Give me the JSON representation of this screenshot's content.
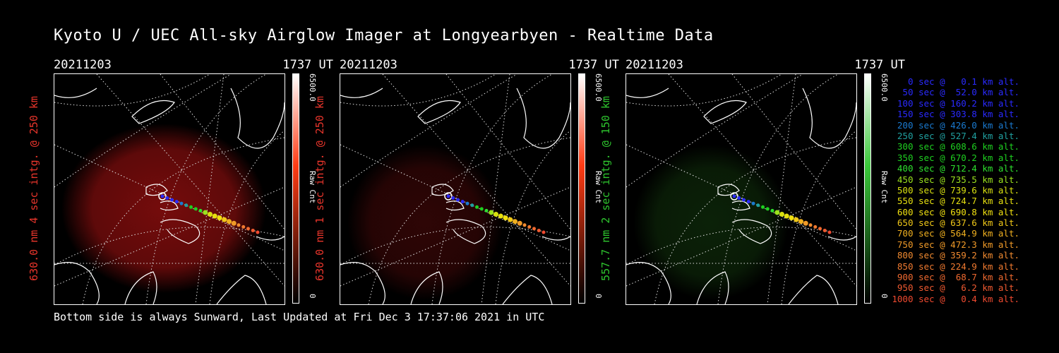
{
  "title": "Kyoto U / UEC All-sky Airglow Imager at Longyearbyen - Realtime Data",
  "footer": "Bottom side is always Sunward, Last Updated at Fri Dec  3 17:37:06 2021 in UTC",
  "panels": [
    {
      "date": "20211203",
      "time": "1737 UT",
      "side_label": "630.0 nm 4 sec intg. @ 250 km",
      "label_color": "#e8352b",
      "cbar_max": "6500.0",
      "cbar_label": "Raw Cnt",
      "cbar_min": "0",
      "cbar_color": "#ff3b14",
      "glow_color": "#8a0e0e",
      "glow_opacity": 0.85
    },
    {
      "date": "20211203",
      "time": "1737 UT",
      "side_label": "630.0 nm 1 sec intg. @ 250 km",
      "label_color": "#e8352b",
      "cbar_max": "6500.0",
      "cbar_label": "Raw Cnt",
      "cbar_min": "0",
      "cbar_color": "#ff3b14",
      "glow_color": "#3a0707",
      "glow_opacity": 0.8
    },
    {
      "date": "20211203",
      "time": "1737 UT",
      "side_label": "557.7 nm 2 sec intg. @ 150 km",
      "label_color": "#2ec62e",
      "cbar_max": "6500.0",
      "cbar_label": "Raw Cnt",
      "cbar_min": "0",
      "cbar_color": "#3ac83a",
      "glow_color": "#0e2a0a",
      "glow_opacity": 0.8
    }
  ],
  "legend": [
    {
      "text": "0 sec @   0.1 km alt.",
      "color": "#2a2aff"
    },
    {
      "text": "50 sec @  52.0 km alt.",
      "color": "#2a2aff"
    },
    {
      "text": "100 sec @ 160.2 km alt.",
      "color": "#2a2aff"
    },
    {
      "text": "150 sec @ 303.8 km alt.",
      "color": "#2a2aff"
    },
    {
      "text": "200 sec @ 426.0 km alt.",
      "color": "#1a7ad0"
    },
    {
      "text": "250 sec @ 527.4 km alt.",
      "color": "#20a0a0"
    },
    {
      "text": "300 sec @ 608.6 km alt.",
      "color": "#1ed020"
    },
    {
      "text": "350 sec @ 670.2 km alt.",
      "color": "#1ed020"
    },
    {
      "text": "400 sec @ 712.4 km alt.",
      "color": "#2ee02e"
    },
    {
      "text": "450 sec @ 735.5 km alt.",
      "color": "#9be21e"
    },
    {
      "text": "500 sec @ 739.6 km alt.",
      "color": "#d8e010"
    },
    {
      "text": "550 sec @ 724.7 km alt.",
      "color": "#e6e010"
    },
    {
      "text": "600 sec @ 690.8 km alt.",
      "color": "#f0e010"
    },
    {
      "text": "650 sec @ 637.6 km alt.",
      "color": "#f0c818"
    },
    {
      "text": "700 sec @ 564.9 km alt.",
      "color": "#f0b020"
    },
    {
      "text": "750 sec @ 472.3 km alt.",
      "color": "#f09a28"
    },
    {
      "text": "800 sec @ 359.2 km alt.",
      "color": "#f08a30"
    },
    {
      "text": "850 sec @ 224.9 km alt.",
      "color": "#f07a30"
    },
    {
      "text": "900 sec @  68.7 km alt.",
      "color": "#f06a30"
    },
    {
      "text": "950 sec @   6.2 km alt.",
      "color": "#f05a30"
    },
    {
      "text": "1000 sec @   0.4 km alt.",
      "color": "#f04a30"
    }
  ],
  "track_colors": [
    "#2a2aff",
    "#2a2aff",
    "#2a2aff",
    "#2a2aff",
    "#1a7ad0",
    "#20a0a0",
    "#1ed020",
    "#1ed020",
    "#2ee02e",
    "#9be21e",
    "#d8e010",
    "#e6e010",
    "#f0e010",
    "#f0c818",
    "#f0b020",
    "#f09a28",
    "#f08a30",
    "#f07a30",
    "#f06a30",
    "#f05a30",
    "#f04a30"
  ]
}
